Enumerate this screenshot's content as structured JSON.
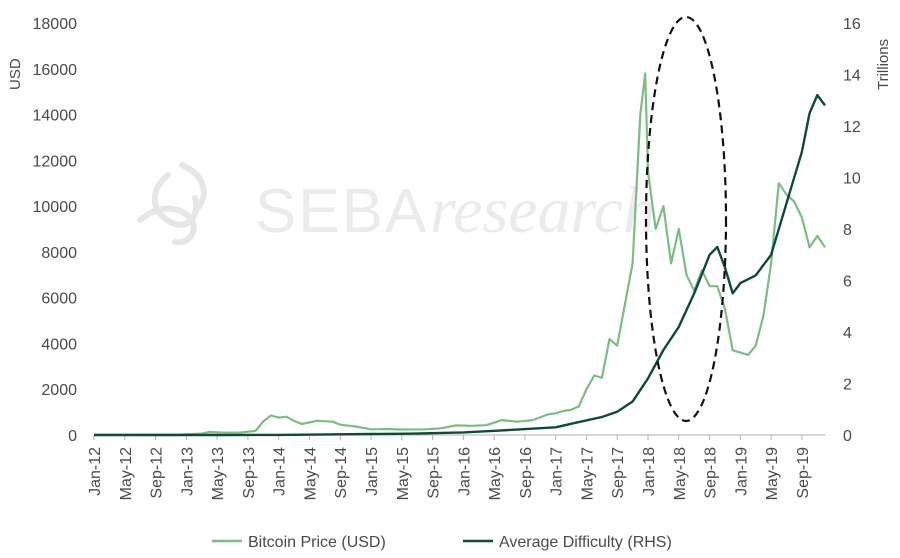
{
  "watermark": {
    "brand": "SEBA",
    "suffix": "research"
  },
  "chart_data": {
    "type": "line",
    "y_left": {
      "label": "USD",
      "ticks": [
        "0",
        "2000",
        "4000",
        "6000",
        "8000",
        "10000",
        "12000",
        "14000",
        "16000",
        "18000"
      ],
      "range": [
        0,
        18000
      ]
    },
    "y_right": {
      "label": "Trillions",
      "ticks": [
        "0",
        "2",
        "4",
        "6",
        "8",
        "10",
        "12",
        "14",
        "16"
      ],
      "range": [
        0,
        16
      ]
    },
    "x_ticks": [
      "Jan-12",
      "May-12",
      "Sep-12",
      "Jan-13",
      "May-13",
      "Sep-13",
      "Jan-14",
      "May-14",
      "Sep-14",
      "Jan-15",
      "May-15",
      "Sep-15",
      "Jan-16",
      "May-16",
      "Sep-16",
      "Jan-17",
      "May-17",
      "Sep-17",
      "Jan-18",
      "May-18",
      "Sep-18",
      "Jan-19",
      "May-19",
      "Sep-19"
    ],
    "x_range": [
      "2012-01",
      "2019-12"
    ],
    "grid": false,
    "legend": "bottom",
    "colors": {
      "price": "#7bbd82",
      "difficulty": "#0e4a3c",
      "axis": "#b0b0b0",
      "ellipse": "#111111"
    },
    "series": [
      {
        "name": "Bitcoin Price (USD)",
        "axis": "left",
        "points": [
          [
            "2012-01",
            6
          ],
          [
            "2012-05",
            5
          ],
          [
            "2012-09",
            11
          ],
          [
            "2012-12",
            13
          ],
          [
            "2013-03",
            60
          ],
          [
            "2013-04",
            130
          ],
          [
            "2013-06",
            100
          ],
          [
            "2013-08",
            110
          ],
          [
            "2013-10",
            180
          ],
          [
            "2013-11",
            600
          ],
          [
            "2013-12",
            850
          ],
          [
            "2014-01",
            760
          ],
          [
            "2014-02",
            800
          ],
          [
            "2014-03",
            620
          ],
          [
            "2014-04",
            480
          ],
          [
            "2014-06",
            620
          ],
          [
            "2014-08",
            580
          ],
          [
            "2014-09",
            450
          ],
          [
            "2014-11",
            370
          ],
          [
            "2015-01",
            250
          ],
          [
            "2015-03",
            260
          ],
          [
            "2015-05",
            240
          ],
          [
            "2015-08",
            250
          ],
          [
            "2015-10",
            290
          ],
          [
            "2015-12",
            420
          ],
          [
            "2016-02",
            400
          ],
          [
            "2016-04",
            430
          ],
          [
            "2016-06",
            650
          ],
          [
            "2016-08",
            580
          ],
          [
            "2016-10",
            650
          ],
          [
            "2016-12",
            900
          ],
          [
            "2017-01",
            950
          ],
          [
            "2017-02",
            1050
          ],
          [
            "2017-03",
            1100
          ],
          [
            "2017-04",
            1250
          ],
          [
            "2017-05",
            2000
          ],
          [
            "2017-06",
            2600
          ],
          [
            "2017-07",
            2500
          ],
          [
            "2017-08",
            4200
          ],
          [
            "2017-09",
            3900
          ],
          [
            "2017-10",
            5700
          ],
          [
            "2017-11",
            7500
          ],
          [
            "2017-12",
            14000
          ],
          [
            "2017-12-20",
            15800
          ],
          [
            "2018-01",
            11500
          ],
          [
            "2018-02",
            9000
          ],
          [
            "2018-03",
            10000
          ],
          [
            "2018-04",
            7500
          ],
          [
            "2018-05",
            9000
          ],
          [
            "2018-06",
            7000
          ],
          [
            "2018-07",
            6300
          ],
          [
            "2018-08",
            7200
          ],
          [
            "2018-09",
            6500
          ],
          [
            "2018-10",
            6500
          ],
          [
            "2018-11",
            5500
          ],
          [
            "2018-12",
            3700
          ],
          [
            "2019-01",
            3600
          ],
          [
            "2019-02",
            3500
          ],
          [
            "2019-03",
            3900
          ],
          [
            "2019-04",
            5200
          ],
          [
            "2019-05",
            7500
          ],
          [
            "2019-06",
            11000
          ],
          [
            "2019-07",
            10500
          ],
          [
            "2019-08",
            10200
          ],
          [
            "2019-09",
            9500
          ],
          [
            "2019-10",
            8200
          ],
          [
            "2019-11",
            8700
          ],
          [
            "2019-12",
            8200
          ]
        ]
      },
      {
        "name": "Average Difficulty (RHS)",
        "axis": "right",
        "points": [
          [
            "2012-01",
            0.0
          ],
          [
            "2013-06",
            0.0
          ],
          [
            "2014-01",
            0.002
          ],
          [
            "2014-06",
            0.015
          ],
          [
            "2015-01",
            0.04
          ],
          [
            "2015-06",
            0.05
          ],
          [
            "2016-01",
            0.1
          ],
          [
            "2016-06",
            0.18
          ],
          [
            "2017-01",
            0.3
          ],
          [
            "2017-04",
            0.5
          ],
          [
            "2017-07",
            0.7
          ],
          [
            "2017-09",
            0.9
          ],
          [
            "2017-11",
            1.3
          ],
          [
            "2018-01",
            2.2
          ],
          [
            "2018-03",
            3.3
          ],
          [
            "2018-05",
            4.2
          ],
          [
            "2018-07",
            5.5
          ],
          [
            "2018-09",
            7.0
          ],
          [
            "2018-10",
            7.3
          ],
          [
            "2018-11",
            6.5
          ],
          [
            "2018-12",
            5.5
          ],
          [
            "2019-01",
            5.9
          ],
          [
            "2019-03",
            6.2
          ],
          [
            "2019-05",
            7.0
          ],
          [
            "2019-07",
            9.0
          ],
          [
            "2019-09",
            11.0
          ],
          [
            "2019-10",
            12.5
          ],
          [
            "2019-11",
            13.2
          ],
          [
            "2019-12",
            12.8
          ]
        ]
      }
    ]
  }
}
